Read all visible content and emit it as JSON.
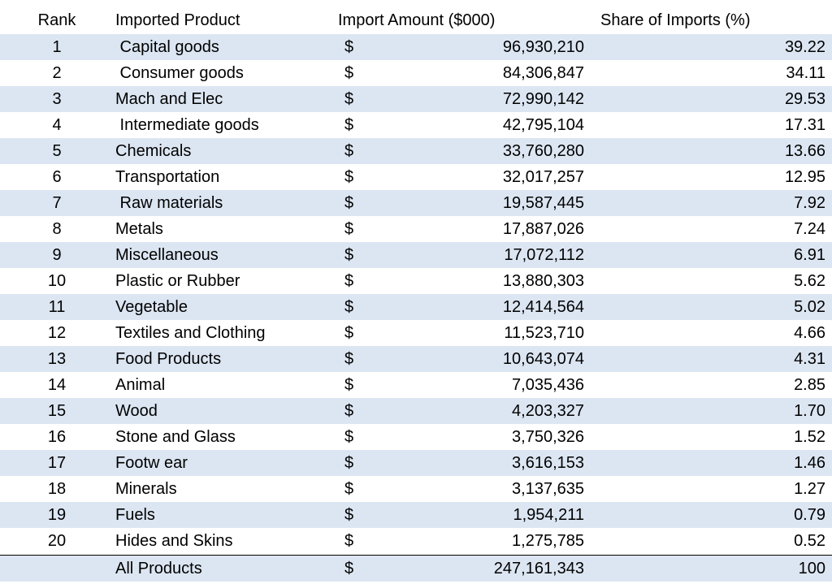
{
  "chart_data": {
    "type": "table",
    "columns": [
      "Rank",
      "Imported Product",
      "Import Amount ($000)",
      "Share of Imports (%)"
    ],
    "rows": [
      {
        "rank": "1",
        "product": " Capital goods",
        "currency": "$",
        "amount": "96,930,210",
        "share": "39.22"
      },
      {
        "rank": "2",
        "product": " Consumer goods",
        "currency": "$",
        "amount": "84,306,847",
        "share": "34.11"
      },
      {
        "rank": "3",
        "product": "Mach and Elec",
        "currency": "$",
        "amount": "72,990,142",
        "share": "29.53"
      },
      {
        "rank": "4",
        "product": " Intermediate goods",
        "currency": "$",
        "amount": "42,795,104",
        "share": "17.31"
      },
      {
        "rank": "5",
        "product": "Chemicals",
        "currency": "$",
        "amount": "33,760,280",
        "share": "13.66"
      },
      {
        "rank": "6",
        "product": "Transportation",
        "currency": "$",
        "amount": "32,017,257",
        "share": "12.95"
      },
      {
        "rank": "7",
        "product": " Raw materials",
        "currency": "$",
        "amount": "19,587,445",
        "share": "7.92"
      },
      {
        "rank": "8",
        "product": "Metals",
        "currency": "$",
        "amount": "17,887,026",
        "share": "7.24"
      },
      {
        "rank": "9",
        "product": "Miscellaneous",
        "currency": "$",
        "amount": "17,072,112",
        "share": "6.91"
      },
      {
        "rank": "10",
        "product": "Plastic or Rubber",
        "currency": "$",
        "amount": "13,880,303",
        "share": "5.62"
      },
      {
        "rank": "11",
        "product": "Vegetable",
        "currency": "$",
        "amount": "12,414,564",
        "share": "5.02"
      },
      {
        "rank": "12",
        "product": "Textiles and Clothing",
        "currency": "$",
        "amount": "11,523,710",
        "share": "4.66"
      },
      {
        "rank": "13",
        "product": "Food Products",
        "currency": "$",
        "amount": "10,643,074",
        "share": "4.31"
      },
      {
        "rank": "14",
        "product": "Animal",
        "currency": "$",
        "amount": "7,035,436",
        "share": "2.85"
      },
      {
        "rank": "15",
        "product": "Wood",
        "currency": "$",
        "amount": "4,203,327",
        "share": "1.70"
      },
      {
        "rank": "16",
        "product": "Stone and Glass",
        "currency": "$",
        "amount": "3,750,326",
        "share": "1.52"
      },
      {
        "rank": "17",
        "product": "Footw ear",
        "currency": "$",
        "amount": "3,616,153",
        "share": "1.46"
      },
      {
        "rank": "18",
        "product": "Minerals",
        "currency": "$",
        "amount": "3,137,635",
        "share": "1.27"
      },
      {
        "rank": "19",
        "product": "Fuels",
        "currency": "$",
        "amount": "1,954,211",
        "share": "0.79"
      },
      {
        "rank": "20",
        "product": "Hides and Skins",
        "currency": "$",
        "amount": "1,275,785",
        "share": "0.52"
      }
    ],
    "total": {
      "rank": "",
      "product": "All Products",
      "currency": "$",
      "amount": "247,161,343",
      "share": "100"
    },
    "colors": {
      "band": "#dce6f2",
      "text": "#000000",
      "rule": "#000000"
    }
  }
}
